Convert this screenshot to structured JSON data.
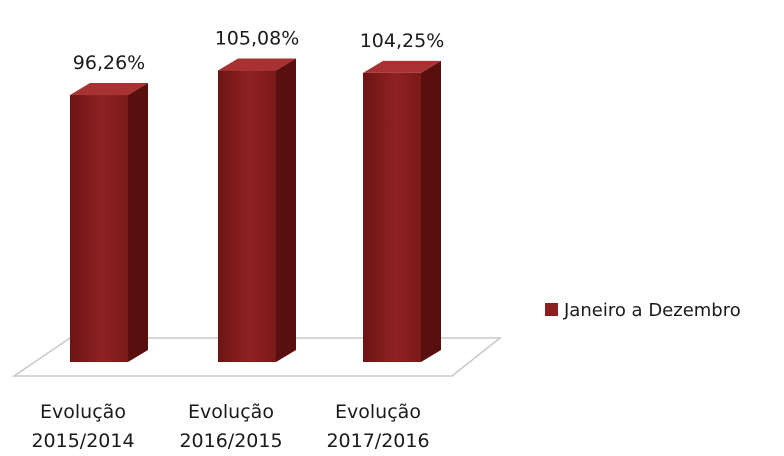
{
  "chart_data": {
    "type": "bar",
    "categories": [
      [
        "Evolução",
        "2015/2014"
      ],
      [
        "Evolução",
        "2016/2015"
      ],
      [
        "Evolução",
        "2017/2016"
      ]
    ],
    "series": [
      {
        "name": "Janeiro a Dezembro",
        "values": [
          96.26,
          105.08,
          104.25
        ],
        "labels": [
          "96,26%",
          "105,08%",
          "104,25%"
        ]
      }
    ],
    "style": "3d-column",
    "legend_position": "right",
    "grid": false,
    "colors": {
      "bar_front": "#8b1e1e",
      "bar_front_dark": "#6d1414",
      "bar_top": "#a83232",
      "bar_side": "#5a0f0f",
      "floor_stroke": "#c8c8c8",
      "legend_swatch": "#8b1e1e"
    }
  }
}
